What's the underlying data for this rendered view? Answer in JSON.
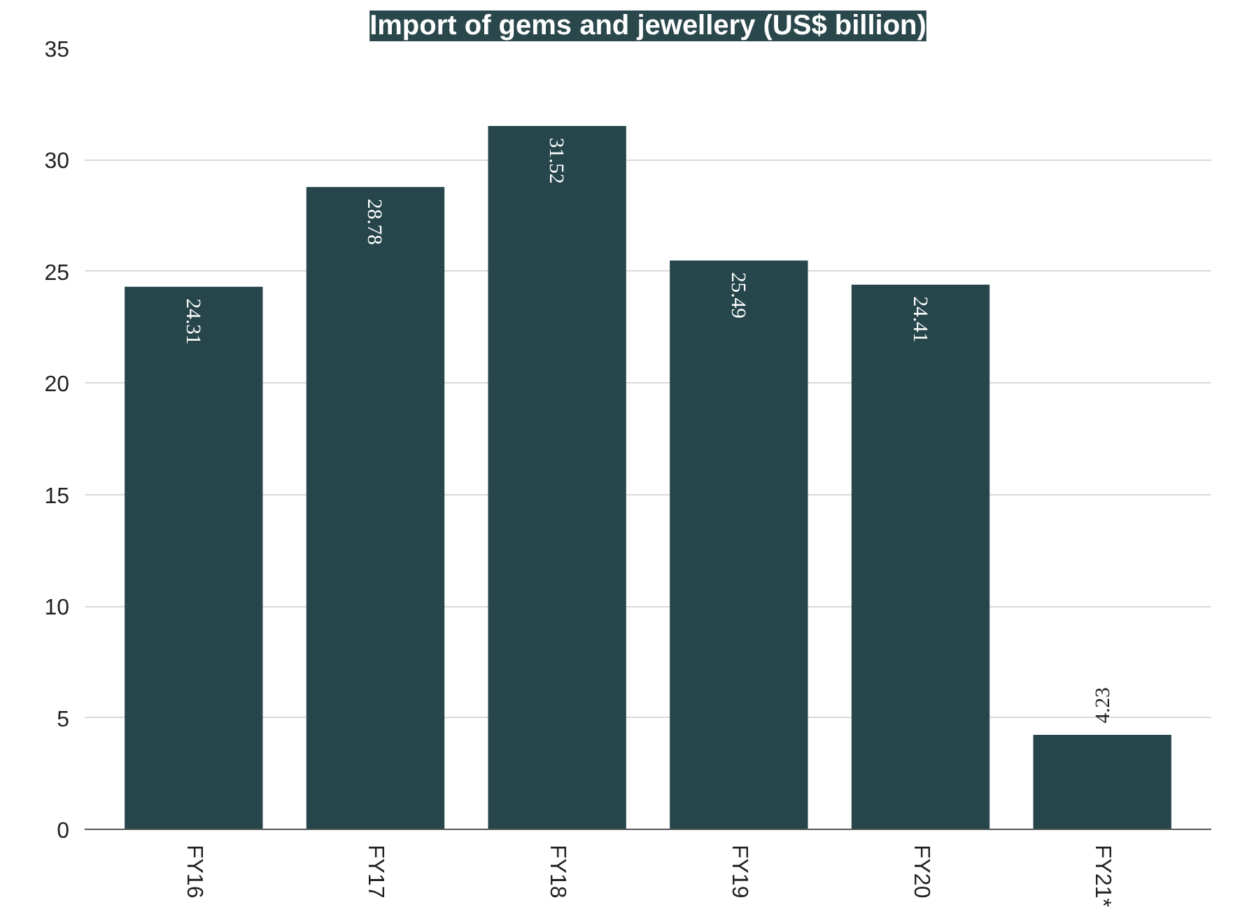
{
  "chart_data": {
    "type": "bar",
    "title": "Import of gems and jewellery (US$ billion)",
    "categories": [
      "FY16",
      "FY17",
      "FY18",
      "FY19",
      "FY20",
      "FY21*"
    ],
    "values": [
      24.31,
      28.78,
      31.52,
      25.49,
      24.41,
      4.23
    ],
    "color": "#26464b",
    "ylim": [
      0,
      35
    ],
    "yticks": [
      0,
      5,
      10,
      15,
      20,
      25,
      30,
      35
    ],
    "grid": "y",
    "data_labels": true
  }
}
